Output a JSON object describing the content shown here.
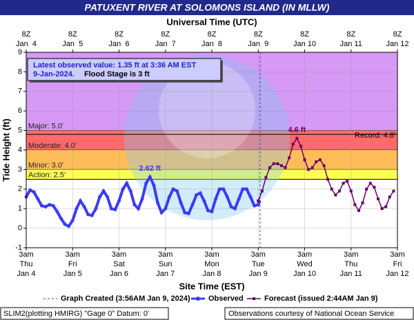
{
  "chart_data": {
    "type": "line",
    "title": "PATUXENT RIVER AT SOLOMONS ISLAND (IN MLLW)",
    "x_label": "Site Time (EST)",
    "x2_label": "Universal Time (UTC)",
    "y_label": "Tide Height (ft)",
    "xlim": [
      "2024-01-04T03:00",
      "2024-01-12T03:00"
    ],
    "xticks": [
      {
        "value": "2024-01-04T03:00",
        "label": [
          "3am",
          "Thu",
          "Jan 4"
        ]
      },
      {
        "value": "2024-01-05T03:00",
        "label": [
          "3am",
          "Fri",
          "Jan 5"
        ]
      },
      {
        "value": "2024-01-06T03:00",
        "label": [
          "3am",
          "Sat",
          "Jan 6"
        ]
      },
      {
        "value": "2024-01-07T03:00",
        "label": [
          "3am",
          "Sun",
          "Jan 7"
        ]
      },
      {
        "value": "2024-01-08T03:00",
        "label": [
          "3am",
          "Mon",
          "Jan 8"
        ]
      },
      {
        "value": "2024-01-09T03:00",
        "label": [
          "3am",
          "Tue",
          "Jan 9"
        ]
      },
      {
        "value": "2024-01-10T03:00",
        "label": [
          "3am",
          "Wed",
          "Jan 10"
        ]
      },
      {
        "value": "2024-01-11T03:00",
        "label": [
          "3am",
          "Thu",
          "Jan 11"
        ]
      },
      {
        "value": "2024-01-12T03:00",
        "label": [
          "3am",
          "Fri",
          "Jan 12"
        ]
      }
    ],
    "x2ticks": [
      {
        "value": "2024-01-04T03:00",
        "label": [
          "8Z",
          "Jan  4"
        ]
      },
      {
        "value": "2024-01-05T03:00",
        "label": [
          "8Z",
          "Jan  5"
        ]
      },
      {
        "value": "2024-01-06T03:00",
        "label": [
          "8Z",
          "Jan  6"
        ]
      },
      {
        "value": "2024-01-07T03:00",
        "label": [
          "8Z",
          "Jan  7"
        ]
      },
      {
        "value": "2024-01-08T03:00",
        "label": [
          "8Z",
          "Jan  8"
        ]
      },
      {
        "value": "2024-01-09T03:00",
        "label": [
          "8Z",
          "Jan  9"
        ]
      },
      {
        "value": "2024-01-10T03:00",
        "label": [
          "8Z",
          "Jan 10"
        ]
      },
      {
        "value": "2024-01-11T03:00",
        "label": [
          "8Z",
          "Jan 11"
        ]
      },
      {
        "value": "2024-01-12T03:00",
        "label": [
          "8Z",
          "Jan 12"
        ]
      }
    ],
    "ylim": [
      -1,
      9
    ],
    "yticks": [
      -1,
      0,
      1,
      2,
      3,
      4,
      5,
      6,
      7,
      8,
      9
    ],
    "grid": true,
    "flood_categories": [
      {
        "label": "Major: 5.0'",
        "value": 5,
        "color": "#d699f5"
      },
      {
        "label": "Moderate: 4.0'",
        "value": 4,
        "color": "#ff6a6a"
      },
      {
        "label": "Minor: 3.0'",
        "value": 3,
        "color": "#ffbd5a"
      },
      {
        "label": "Action: 2.5'",
        "value": 2.5,
        "color": "#ffff55"
      }
    ],
    "record": {
      "label": "Record: 4.8'",
      "value": 4.8
    },
    "info": {
      "line1": "Latest observed value: 1.35 ft at 3:36 AM EST",
      "line2": "9-Jan-2024.",
      "flood_stage": "Flood Stage is 3 ft"
    },
    "graph_created": {
      "x": "2024-01-09T03:56",
      "label": "Graph Created (3:56AM Jan 9, 2024)"
    },
    "series": [
      {
        "name": "Observed",
        "color": "#3b3bf5",
        "x": [
          "2024-01-04T03:00",
          "2024-01-04T05:00",
          "2024-01-04T07:00",
          "2024-01-04T09:00",
          "2024-01-04T11:00",
          "2024-01-04T13:00",
          "2024-01-04T15:00",
          "2024-01-04T17:00",
          "2024-01-04T19:00",
          "2024-01-04T21:00",
          "2024-01-04T23:00",
          "2024-01-05T01:00",
          "2024-01-05T03:00",
          "2024-01-05T05:00",
          "2024-01-05T07:00",
          "2024-01-05T09:00",
          "2024-01-05T11:00",
          "2024-01-05T13:00",
          "2024-01-05T15:00",
          "2024-01-05T17:00",
          "2024-01-05T19:00",
          "2024-01-05T21:00",
          "2024-01-05T23:00",
          "2024-01-06T01:00",
          "2024-01-06T03:00",
          "2024-01-06T05:00",
          "2024-01-06T07:00",
          "2024-01-06T09:00",
          "2024-01-06T11:00",
          "2024-01-06T13:00",
          "2024-01-06T15:00",
          "2024-01-06T17:00",
          "2024-01-06T19:00",
          "2024-01-06T21:00",
          "2024-01-06T23:00",
          "2024-01-07T01:00",
          "2024-01-07T03:00",
          "2024-01-07T05:00",
          "2024-01-07T07:00",
          "2024-01-07T09:00",
          "2024-01-07T11:00",
          "2024-01-07T13:00",
          "2024-01-07T15:00",
          "2024-01-07T17:00",
          "2024-01-07T19:00",
          "2024-01-07T21:00",
          "2024-01-07T23:00",
          "2024-01-08T01:00",
          "2024-01-08T03:00",
          "2024-01-08T05:00",
          "2024-01-08T07:00",
          "2024-01-08T09:00",
          "2024-01-08T11:00",
          "2024-01-08T13:00",
          "2024-01-08T15:00",
          "2024-01-08T17:00",
          "2024-01-08T19:00",
          "2024-01-08T21:00",
          "2024-01-08T23:00",
          "2024-01-09T01:00",
          "2024-01-09T03:00",
          "2024-01-09T03:36"
        ],
        "values": [
          1.6,
          1.95,
          1.85,
          1.5,
          1.15,
          1.1,
          1.2,
          1.15,
          0.85,
          0.5,
          0.2,
          0.1,
          0.4,
          1.0,
          1.4,
          1.1,
          0.7,
          0.65,
          1.0,
          1.6,
          1.9,
          1.6,
          1.0,
          0.95,
          1.4,
          2.0,
          2.3,
          1.9,
          1.2,
          1.0,
          1.5,
          2.3,
          2.62,
          2.2,
          1.3,
          0.8,
          1.0,
          1.6,
          2.0,
          1.9,
          1.3,
          0.8,
          0.75,
          1.2,
          1.7,
          1.8,
          1.4,
          0.9,
          0.85,
          1.5,
          2.0,
          2.0,
          1.6,
          1.1,
          1.0,
          1.5,
          2.0,
          2.0,
          1.6,
          1.15,
          1.2,
          1.35
        ],
        "peak": {
          "index": 32,
          "label": "2.62 ft"
        }
      },
      {
        "name": "Forecast (issued 2:44AM Jan 9)",
        "color": "#660066",
        "x": [
          "2024-01-09T03:00",
          "2024-01-09T05:00",
          "2024-01-09T07:00",
          "2024-01-09T09:00",
          "2024-01-09T11:00",
          "2024-01-09T13:00",
          "2024-01-09T15:00",
          "2024-01-09T17:00",
          "2024-01-09T19:00",
          "2024-01-09T21:00",
          "2024-01-09T23:00",
          "2024-01-10T01:00",
          "2024-01-10T03:00",
          "2024-01-10T05:00",
          "2024-01-10T07:00",
          "2024-01-10T09:00",
          "2024-01-10T11:00",
          "2024-01-10T13:00",
          "2024-01-10T15:00",
          "2024-01-10T17:00",
          "2024-01-10T19:00",
          "2024-01-10T21:00",
          "2024-01-10T23:00",
          "2024-01-11T01:00",
          "2024-01-11T03:00",
          "2024-01-11T05:00",
          "2024-01-11T07:00",
          "2024-01-11T09:00",
          "2024-01-11T11:00",
          "2024-01-11T13:00",
          "2024-01-11T15:00",
          "2024-01-11T17:00",
          "2024-01-11T19:00",
          "2024-01-11T21:00",
          "2024-01-11T23:00",
          "2024-01-12T01:00"
        ],
        "values": [
          1.4,
          1.9,
          2.6,
          3.1,
          3.3,
          3.3,
          3.2,
          3.1,
          3.6,
          4.3,
          4.6,
          4.2,
          3.5,
          3.0,
          3.1,
          3.4,
          3.5,
          3.2,
          2.5,
          2.0,
          1.7,
          1.9,
          2.3,
          2.4,
          1.9,
          1.2,
          0.9,
          1.3,
          2.0,
          2.3,
          2.1,
          1.5,
          1.0,
          1.1,
          1.6,
          1.9
        ],
        "peak": {
          "index": 10,
          "label": "4.6 ft"
        }
      }
    ],
    "footer": {
      "left": "SLIM2(plotting HMIRG) \"Gage 0\" Datum: 0'",
      "right": "Observations courtesy of National Ocean Service"
    }
  }
}
